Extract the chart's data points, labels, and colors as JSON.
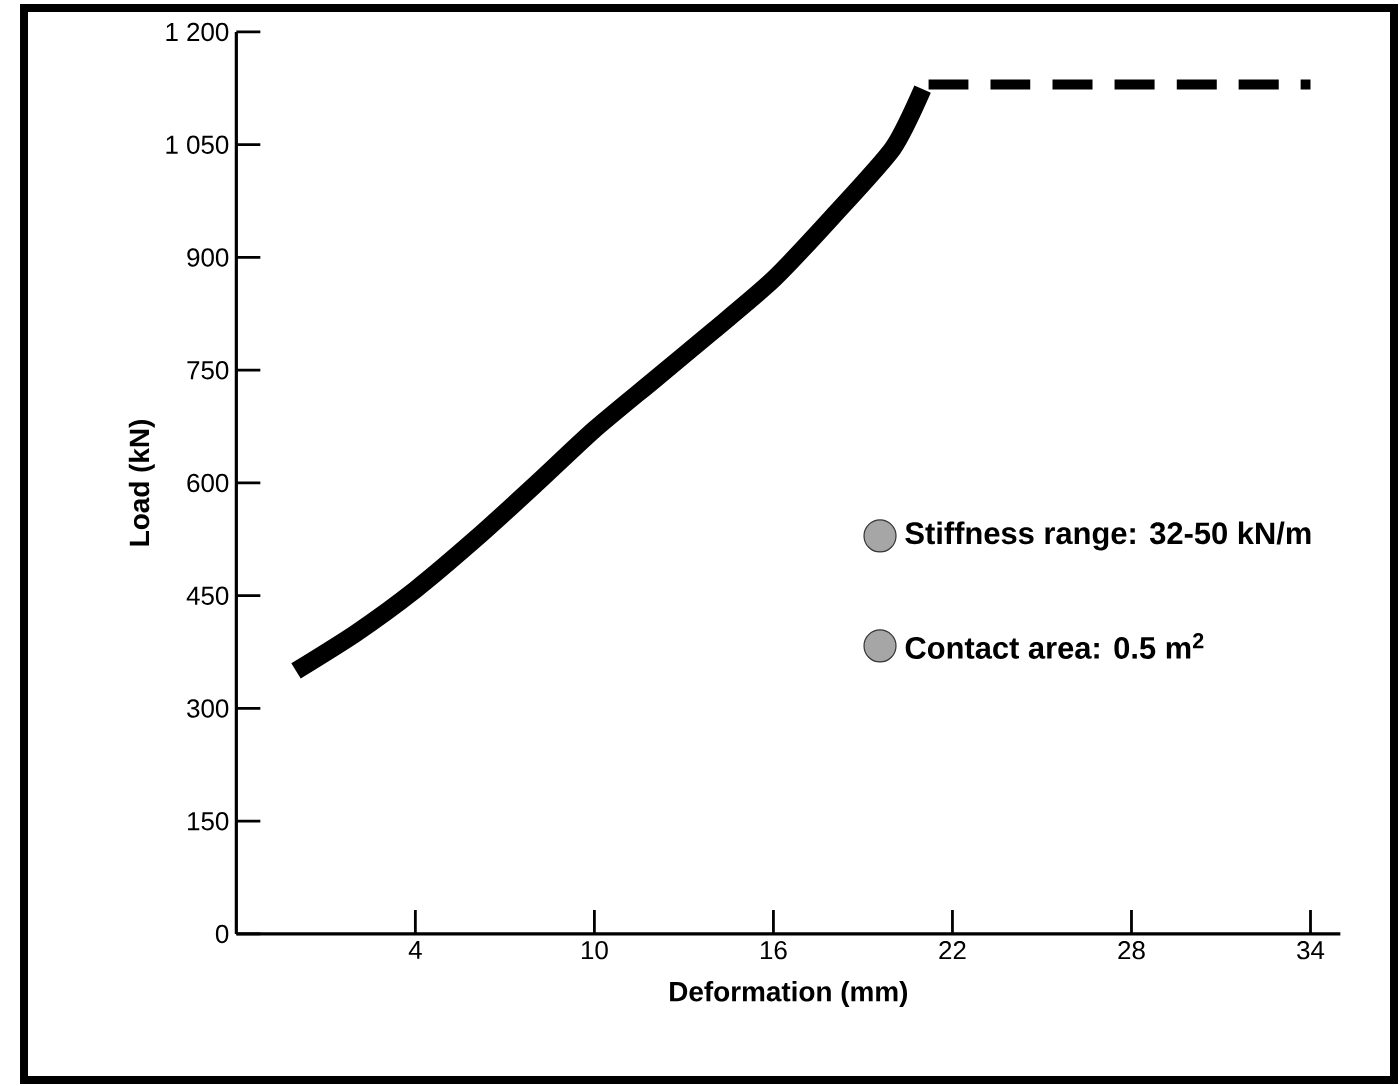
{
  "chart_data": {
    "type": "line",
    "xlabel": "Deformation (mm)",
    "ylabel": "Load (kN)",
    "xlim": [
      -2,
      35
    ],
    "xticks": [
      4,
      10,
      16,
      22,
      28,
      34
    ],
    "ylim": [
      0,
      1200
    ],
    "yticks": [
      0,
      150,
      300,
      450,
      600,
      750,
      900,
      {
        "value": 1050,
        "label": "1 050"
      },
      {
        "value": 1200,
        "label": "1 200"
      }
    ],
    "grid": false,
    "marker": "none",
    "series": [
      {
        "color": "#000000",
        "line_style": "solid",
        "x": [
          0,
          2,
          4,
          6,
          8,
          10,
          12,
          14,
          16,
          18,
          20,
          21
        ],
        "values": [
          350,
          400,
          458,
          525,
          597,
          671,
          737,
          803,
          871,
          955,
          1045,
          1124
        ]
      },
      {
        "color": "#000000",
        "line_style": "dashed",
        "x": [
          21.2,
          34
        ],
        "values": [
          1130,
          1130
        ]
      }
    ],
    "annotations": [
      "Stiffness range: 32-50 kN/m",
      "Contact area: 0.5 m$^{2}$"
    ]
  }
}
